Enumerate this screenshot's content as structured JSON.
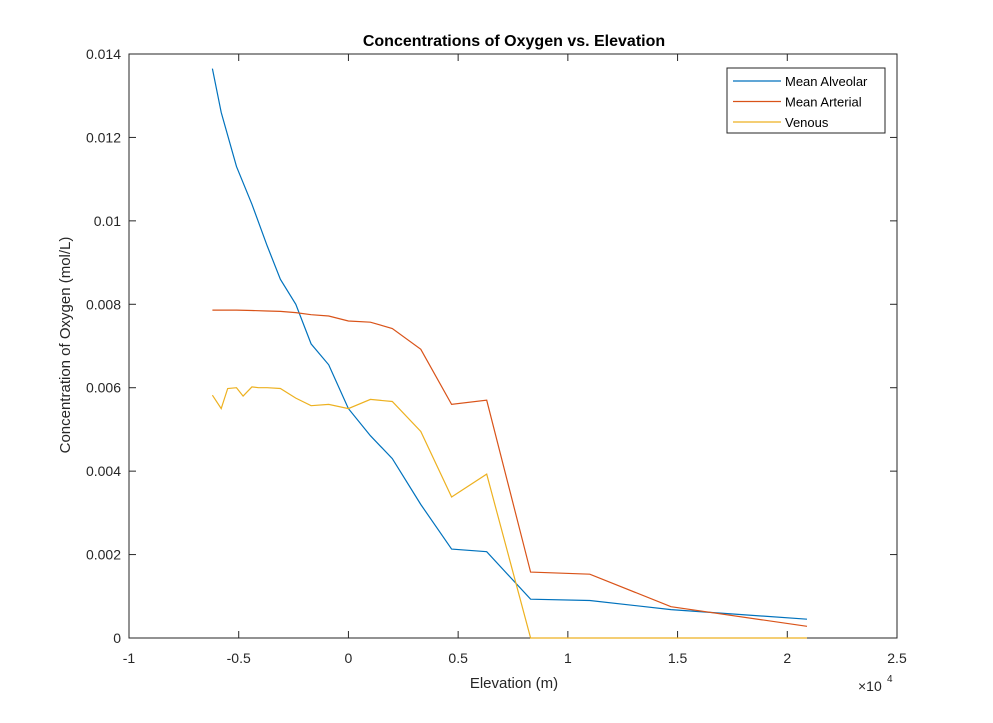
{
  "chart_data": {
    "type": "line",
    "title": "Concentrations of Oxygen vs. Elevation",
    "xlabel": "Elevation (m)",
    "ylabel": "Concentration of Oxygen (mol/L)",
    "x_exponent_label": "×10",
    "x_exponent_power": "4",
    "xlim": [
      -1,
      2.5
    ],
    "ylim": [
      0,
      0.014
    ],
    "xticks": [
      -1,
      -0.5,
      0,
      0.5,
      1,
      1.5,
      2,
      2.5
    ],
    "xtick_labels": [
      "-1",
      "-0.5",
      "0",
      "0.5",
      "1",
      "1.5",
      "2",
      "2.5"
    ],
    "yticks": [
      0,
      0.002,
      0.004,
      0.006,
      0.008,
      0.01,
      0.012,
      0.014
    ],
    "ytick_labels": [
      "0",
      "0.002",
      "0.004",
      "0.006",
      "0.008",
      "0.01",
      "0.012",
      "0.014"
    ],
    "legend_position": "top-right",
    "grid": false,
    "series": [
      {
        "name": "Mean Alveolar",
        "color": "#0072BD",
        "x": [
          -0.62,
          -0.58,
          -0.51,
          -0.44,
          -0.37,
          -0.31,
          -0.24,
          -0.17,
          -0.09,
          0.0,
          0.1,
          0.2,
          0.33,
          0.47,
          0.63,
          0.83,
          1.1,
          1.47,
          2.09
        ],
        "y": [
          0.01365,
          0.0126,
          0.0113,
          0.0104,
          0.0094,
          0.0086,
          0.008,
          0.00705,
          0.00655,
          0.0055,
          0.00485,
          0.0043,
          0.0032,
          0.00213,
          0.00207,
          0.00093,
          0.0009,
          0.00068,
          0.00045
        ]
      },
      {
        "name": "Mean Arterial",
        "color": "#D95319",
        "x": [
          -0.62,
          -0.58,
          -0.51,
          -0.44,
          -0.37,
          -0.31,
          -0.24,
          -0.17,
          -0.09,
          0.0,
          0.1,
          0.2,
          0.33,
          0.47,
          0.63,
          0.83,
          1.1,
          1.47,
          2.09
        ],
        "y": [
          0.00786,
          0.00786,
          0.00786,
          0.00785,
          0.00784,
          0.00783,
          0.0078,
          0.00775,
          0.00772,
          0.0076,
          0.00757,
          0.00742,
          0.00692,
          0.0056,
          0.0057,
          0.00158,
          0.00153,
          0.00075,
          0.00028
        ]
      },
      {
        "name": "Venous",
        "color": "#EDB120",
        "x": [
          -0.62,
          -0.58,
          -0.55,
          -0.51,
          -0.48,
          -0.44,
          -0.41,
          -0.37,
          -0.31,
          -0.24,
          -0.17,
          -0.09,
          0.0,
          0.1,
          0.2,
          0.33,
          0.47,
          0.63,
          0.83,
          1.1,
          1.47,
          2.09
        ],
        "y": [
          0.00582,
          0.0055,
          0.00598,
          0.006,
          0.0058,
          0.00602,
          0.006,
          0.006,
          0.00598,
          0.00575,
          0.00557,
          0.0056,
          0.0055,
          0.00572,
          0.00567,
          0.00495,
          0.00338,
          0.00393,
          0.0,
          0.0,
          0.0,
          0.0
        ]
      }
    ]
  }
}
